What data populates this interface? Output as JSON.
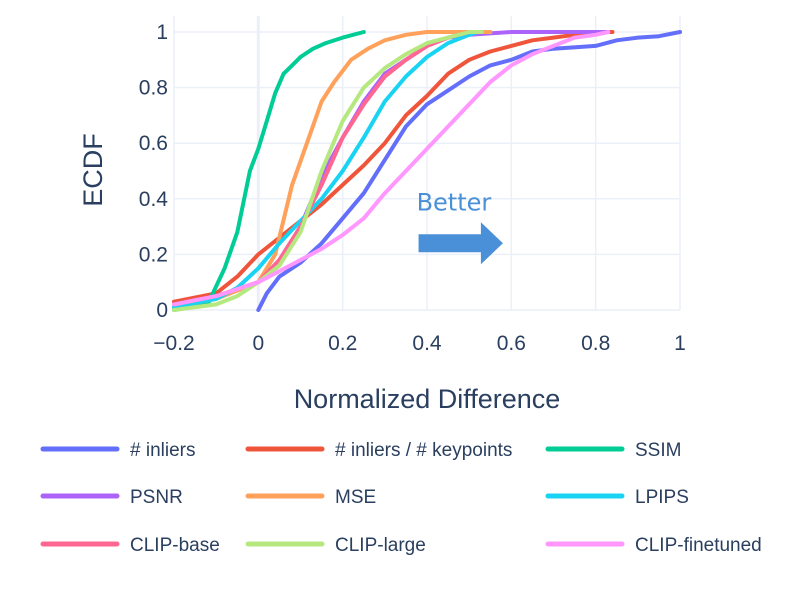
{
  "chart_data": {
    "type": "line",
    "title": "",
    "xlabel": "Normalized Difference",
    "ylabel": "ECDF",
    "xlim": [
      -0.2,
      1
    ],
    "ylim": [
      0,
      1
    ],
    "x_ticks": [
      {
        "value": -0.2,
        "label": "−0.2"
      },
      {
        "value": 0,
        "label": "0"
      },
      {
        "value": 0.2,
        "label": "0.2"
      },
      {
        "value": 0.4,
        "label": "0.4"
      },
      {
        "value": 0.6,
        "label": "0.6"
      },
      {
        "value": 0.8,
        "label": "0.8"
      },
      {
        "value": 1,
        "label": "1"
      }
    ],
    "y_ticks": [
      {
        "value": 0,
        "label": "0"
      },
      {
        "value": 0.2,
        "label": "0.2"
      },
      {
        "value": 0.4,
        "label": "0.4"
      },
      {
        "value": 0.6,
        "label": "0.6"
      },
      {
        "value": 0.8,
        "label": "0.8"
      },
      {
        "value": 1,
        "label": "1"
      }
    ],
    "grid": true,
    "legend_position": "bottom",
    "annotation": {
      "text": "Better",
      "x": 0.38,
      "y": 0.39,
      "color": "#4a90d9",
      "arrow_x": [
        0.38,
        0.58
      ],
      "arrow_y": 0.24
    },
    "series": [
      {
        "name": "# inliers",
        "color": "#636efa",
        "x": [
          0.0,
          0.02,
          0.05,
          0.1,
          0.15,
          0.2,
          0.25,
          0.3,
          0.35,
          0.4,
          0.45,
          0.5,
          0.55,
          0.6,
          0.65,
          0.7,
          0.8,
          0.85,
          0.9,
          0.95,
          1.0
        ],
        "y": [
          0.0,
          0.06,
          0.12,
          0.17,
          0.24,
          0.33,
          0.42,
          0.54,
          0.66,
          0.74,
          0.79,
          0.84,
          0.88,
          0.9,
          0.93,
          0.94,
          0.95,
          0.97,
          0.98,
          0.985,
          1.0
        ]
      },
      {
        "name": "# inliers / # keypoints",
        "color": "#ef553b",
        "x": [
          -0.2,
          -0.1,
          -0.05,
          0.0,
          0.05,
          0.1,
          0.15,
          0.2,
          0.25,
          0.3,
          0.35,
          0.4,
          0.45,
          0.5,
          0.55,
          0.6,
          0.65,
          0.7,
          0.75,
          0.8,
          0.84
        ],
        "y": [
          0.03,
          0.06,
          0.12,
          0.2,
          0.26,
          0.32,
          0.38,
          0.45,
          0.52,
          0.6,
          0.7,
          0.77,
          0.85,
          0.9,
          0.93,
          0.95,
          0.97,
          0.98,
          0.99,
          1.0,
          1.0
        ]
      },
      {
        "name": "SSIM",
        "color": "#00cc96",
        "x": [
          -0.2,
          -0.12,
          -0.08,
          -0.05,
          -0.02,
          0.0,
          0.02,
          0.04,
          0.06,
          0.08,
          0.1,
          0.13,
          0.16,
          0.2,
          0.25
        ],
        "y": [
          0.0,
          0.02,
          0.15,
          0.28,
          0.5,
          0.58,
          0.68,
          0.78,
          0.85,
          0.88,
          0.91,
          0.94,
          0.96,
          0.98,
          1.0
        ]
      },
      {
        "name": "PSNR",
        "color": "#ab63fa",
        "x": [
          -0.2,
          -0.1,
          0.0,
          0.05,
          0.1,
          0.15,
          0.2,
          0.25,
          0.3,
          0.35,
          0.4,
          0.45,
          0.5,
          0.6,
          0.7,
          0.8,
          0.83
        ],
        "y": [
          0.02,
          0.05,
          0.1,
          0.18,
          0.3,
          0.48,
          0.62,
          0.75,
          0.85,
          0.9,
          0.95,
          0.98,
          0.99,
          1.0,
          1.0,
          1.0,
          1.0
        ]
      },
      {
        "name": "MSE",
        "color": "#ffa15a",
        "x": [
          -0.2,
          -0.1,
          0.0,
          0.04,
          0.08,
          0.12,
          0.15,
          0.18,
          0.22,
          0.26,
          0.3,
          0.35,
          0.4,
          0.45,
          0.5,
          0.55
        ],
        "y": [
          0.01,
          0.04,
          0.1,
          0.2,
          0.45,
          0.62,
          0.75,
          0.82,
          0.9,
          0.94,
          0.97,
          0.99,
          1.0,
          1.0,
          1.0,
          1.0
        ]
      },
      {
        "name": "LPIPS",
        "color": "#19d3f3",
        "x": [
          -0.2,
          -0.1,
          -0.05,
          0.0,
          0.05,
          0.1,
          0.15,
          0.2,
          0.25,
          0.3,
          0.35,
          0.4,
          0.45,
          0.5,
          0.52
        ],
        "y": [
          0.01,
          0.04,
          0.08,
          0.15,
          0.24,
          0.32,
          0.4,
          0.5,
          0.62,
          0.75,
          0.84,
          0.91,
          0.96,
          0.99,
          1.0
        ]
      },
      {
        "name": "CLIP-base",
        "color": "#ff6692",
        "x": [
          -0.2,
          -0.1,
          0.0,
          0.05,
          0.1,
          0.15,
          0.2,
          0.25,
          0.3,
          0.35,
          0.4,
          0.45,
          0.5
        ],
        "y": [
          0.02,
          0.05,
          0.1,
          0.18,
          0.3,
          0.45,
          0.62,
          0.74,
          0.84,
          0.9,
          0.95,
          0.98,
          1.0
        ]
      },
      {
        "name": "CLIP-large",
        "color": "#b6e880",
        "x": [
          -0.2,
          -0.1,
          -0.05,
          0.0,
          0.05,
          0.1,
          0.15,
          0.2,
          0.25,
          0.3,
          0.35,
          0.4,
          0.45,
          0.5,
          0.53
        ],
        "y": [
          0.0,
          0.02,
          0.05,
          0.1,
          0.16,
          0.28,
          0.5,
          0.68,
          0.8,
          0.87,
          0.92,
          0.96,
          0.98,
          1.0,
          1.0
        ]
      },
      {
        "name": "CLIP-finetuned",
        "color": "#ff97ff",
        "x": [
          -0.2,
          -0.1,
          0.0,
          0.05,
          0.1,
          0.15,
          0.2,
          0.25,
          0.3,
          0.35,
          0.4,
          0.45,
          0.5,
          0.55,
          0.6,
          0.65,
          0.7,
          0.75,
          0.8,
          0.83
        ],
        "y": [
          0.02,
          0.05,
          0.1,
          0.14,
          0.18,
          0.22,
          0.27,
          0.33,
          0.42,
          0.5,
          0.58,
          0.66,
          0.74,
          0.82,
          0.88,
          0.92,
          0.95,
          0.98,
          0.99,
          1.0
        ]
      }
    ]
  }
}
